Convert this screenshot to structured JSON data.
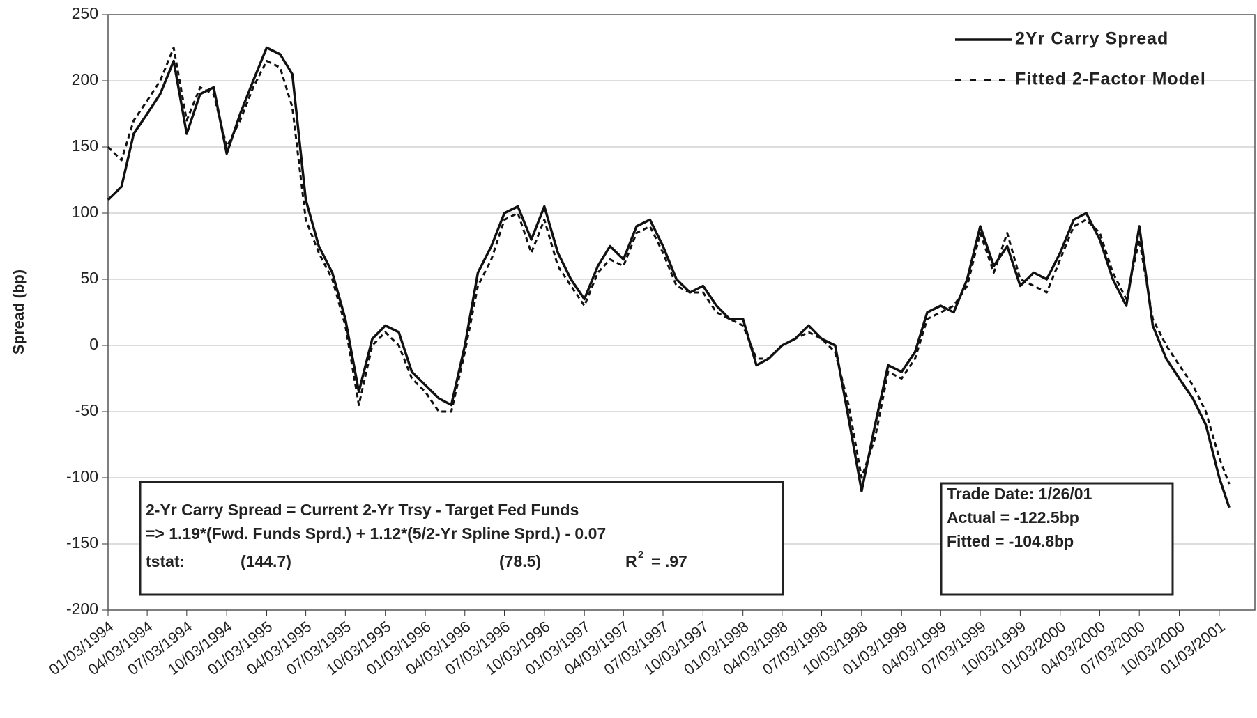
{
  "chart_data": {
    "type": "line",
    "y_label": "Spread (bp)",
    "x": [
      "01/03/1994",
      "02/03/1994",
      "03/03/1994",
      "04/03/1994",
      "05/03/1994",
      "06/03/1994",
      "07/03/1994",
      "08/03/1994",
      "09/03/1994",
      "10/03/1994",
      "11/03/1994",
      "12/03/1994",
      "01/03/1995",
      "02/03/1995",
      "03/03/1995",
      "04/03/1995",
      "05/03/1995",
      "06/03/1995",
      "07/03/1995",
      "08/03/1995",
      "09/03/1995",
      "10/03/1995",
      "11/03/1995",
      "12/03/1995",
      "01/03/1996",
      "02/03/1996",
      "03/03/1996",
      "04/03/1996",
      "05/03/1996",
      "06/03/1996",
      "07/03/1996",
      "08/03/1996",
      "09/03/1996",
      "10/03/1996",
      "11/03/1996",
      "12/03/1996",
      "01/03/1997",
      "02/03/1997",
      "03/03/1997",
      "04/03/1997",
      "05/03/1997",
      "06/03/1997",
      "07/03/1997",
      "08/03/1997",
      "09/03/1997",
      "10/03/1997",
      "11/03/1997",
      "12/03/1997",
      "01/03/1998",
      "02/03/1998",
      "03/03/1998",
      "04/03/1998",
      "05/03/1998",
      "06/03/1998",
      "07/03/1998",
      "08/03/1998",
      "09/03/1998",
      "10/03/1998",
      "11/03/1998",
      "12/03/1998",
      "01/03/1999",
      "02/03/1999",
      "03/03/1999",
      "04/03/1999",
      "05/03/1999",
      "06/03/1999",
      "07/03/1999",
      "08/03/1999",
      "09/03/1999",
      "10/03/1999",
      "11/03/1999",
      "12/03/1999",
      "01/03/2000",
      "02/03/2000",
      "03/03/2000",
      "04/03/2000",
      "05/03/2000",
      "06/03/2000",
      "07/03/2000",
      "08/03/2000",
      "09/03/2000",
      "10/03/2000",
      "11/03/2000",
      "12/03/2000",
      "01/03/2001",
      "01/26/2001"
    ],
    "series": [
      {
        "name": "2Yr Carry Spread",
        "color": "#111111",
        "dash": false,
        "values": [
          110,
          120,
          160,
          175,
          190,
          215,
          160,
          190,
          195,
          145,
          175,
          200,
          225,
          220,
          205,
          110,
          75,
          55,
          20,
          -35,
          5,
          15,
          10,
          -20,
          -30,
          -40,
          -45,
          0,
          55,
          75,
          100,
          105,
          80,
          105,
          70,
          50,
          35,
          60,
          75,
          65,
          90,
          95,
          75,
          50,
          40,
          45,
          30,
          20,
          20,
          -15,
          -10,
          0,
          5,
          15,
          5,
          0,
          -55,
          -110,
          -60,
          -15,
          -20,
          -5,
          25,
          30,
          25,
          50,
          90,
          60,
          75,
          45,
          55,
          50,
          70,
          95,
          100,
          80,
          50,
          30,
          90,
          15,
          -10,
          -25,
          -40,
          -60,
          -100,
          -122.5
        ]
      },
      {
        "name": "Fitted 2-Factor Model",
        "color": "#111111",
        "dash": true,
        "values": [
          150,
          140,
          170,
          185,
          200,
          225,
          170,
          195,
          190,
          150,
          170,
          195,
          215,
          210,
          180,
          95,
          70,
          50,
          15,
          -45,
          0,
          10,
          0,
          -25,
          -35,
          -50,
          -50,
          -5,
          45,
          65,
          95,
          100,
          70,
          95,
          60,
          45,
          30,
          55,
          65,
          60,
          85,
          90,
          70,
          45,
          40,
          40,
          25,
          20,
          15,
          -10,
          -10,
          0,
          5,
          10,
          5,
          -5,
          -45,
          -100,
          -70,
          -20,
          -25,
          -10,
          20,
          25,
          30,
          45,
          85,
          55,
          85,
          50,
          45,
          40,
          65,
          90,
          95,
          85,
          55,
          35,
          80,
          20,
          0,
          -15,
          -30,
          -50,
          -85,
          -104.8
        ]
      }
    ],
    "xlim": [
      "01/03/1994",
      "03/26/2001"
    ],
    "xticks": [
      "01/03/1994",
      "04/03/1994",
      "07/03/1994",
      "10/03/1994",
      "01/03/1995",
      "04/03/1995",
      "07/03/1995",
      "10/03/1995",
      "01/03/1996",
      "04/03/1996",
      "07/03/1996",
      "10/03/1996",
      "01/03/1997",
      "04/03/1997",
      "07/03/1997",
      "10/03/1997",
      "01/03/1998",
      "04/03/1998",
      "07/03/1998",
      "10/03/1998",
      "01/03/1999",
      "04/03/1999",
      "07/03/1999",
      "10/03/1999",
      "01/03/2000",
      "04/03/2000",
      "07/03/2000",
      "10/03/2000",
      "01/03/2001"
    ],
    "ylim": [
      -200,
      250
    ],
    "yticks": [
      -200,
      -150,
      -100,
      -50,
      0,
      50,
      100,
      150,
      200,
      250
    ],
    "grid": true,
    "legend": "top-right",
    "equation_box": {
      "line1": "2-Yr Carry Spread = Current 2-Yr Trsy - Target Fed Funds",
      "line2": "=>  1.19*(Fwd. Funds Sprd.) + 1.12*(5/2-Yr Spline Sprd.) - 0.07",
      "tstat_label": "tstat:",
      "tstat1": "(144.7)",
      "tstat2": "(78.5)",
      "r2_symbol": "R",
      "r2_exponent": "2",
      "r2_value": "= .97"
    },
    "trade_box": {
      "line1": "Trade Date: 1/26/01",
      "line2": "Actual = -122.5bp",
      "line3": "Fitted = -104.8bp"
    }
  }
}
